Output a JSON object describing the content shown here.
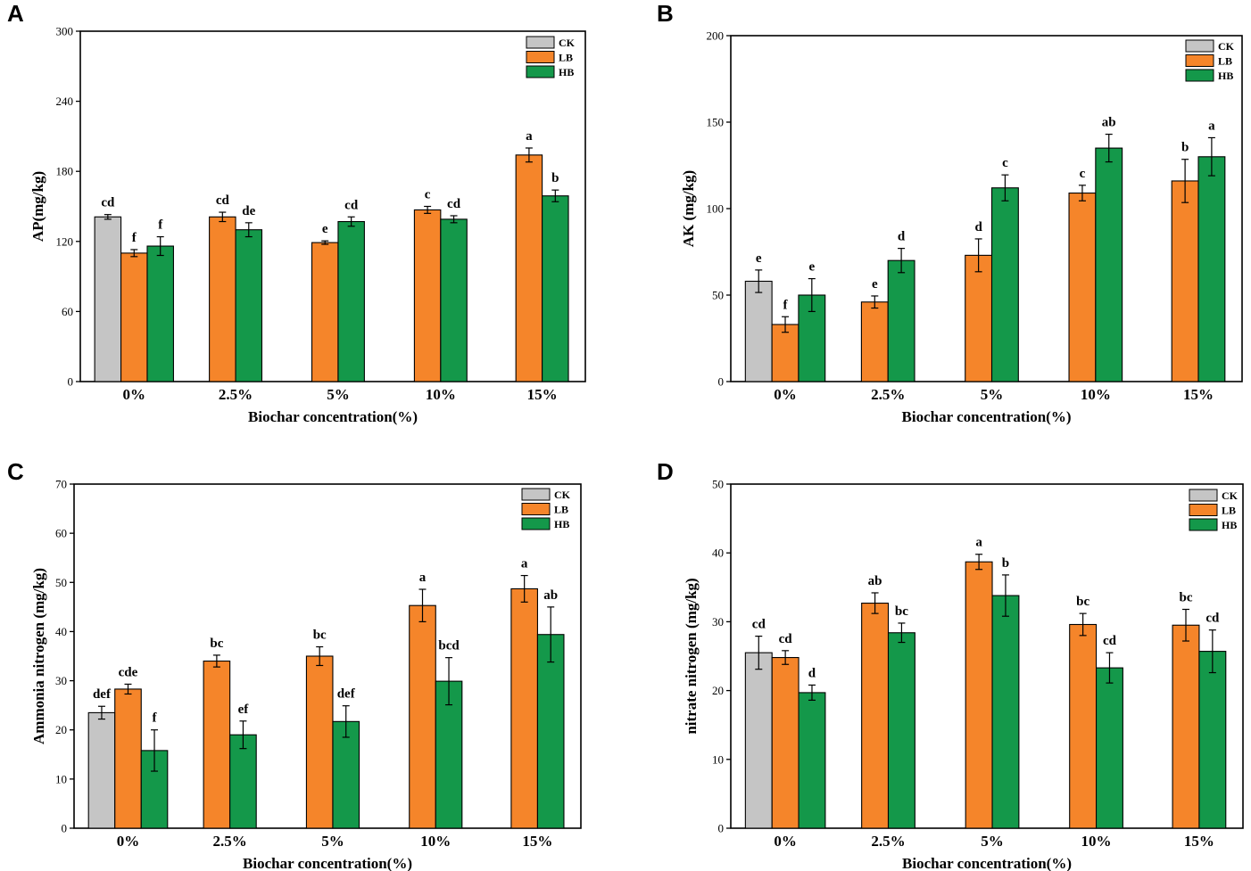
{
  "colors": {
    "CK": "#c5c5c5",
    "LB": "#f5852a",
    "HB": "#14984a"
  },
  "chart_data": [
    {
      "panel": "A",
      "type": "bar",
      "xlabel": "Biochar concentration(%)",
      "ylabel": "AP(mg/kg)",
      "ylim": [
        0,
        300
      ],
      "yticks": [
        0,
        60,
        120,
        180,
        240,
        300
      ],
      "categories": [
        "0%",
        "2.5%",
        "5%",
        "10%",
        "15%"
      ],
      "legend": [
        "CK",
        "LB",
        "HB"
      ],
      "series": [
        {
          "name": "CK",
          "values": [
            141,
            null,
            null,
            null,
            null
          ],
          "errors": [
            2,
            null,
            null,
            null,
            null
          ],
          "labels": [
            "cd",
            null,
            null,
            null,
            null
          ]
        },
        {
          "name": "LB",
          "values": [
            110,
            141,
            119,
            147,
            194
          ],
          "errors": [
            3,
            4,
            1.5,
            3,
            6
          ],
          "labels": [
            "f",
            "cd",
            "e",
            "c",
            "a"
          ]
        },
        {
          "name": "HB",
          "values": [
            116,
            130,
            137,
            139,
            159
          ],
          "errors": [
            8,
            6,
            4,
            3,
            5
          ],
          "labels": [
            "f",
            "de",
            "cd",
            "cd",
            "b"
          ]
        }
      ]
    },
    {
      "panel": "B",
      "type": "bar",
      "xlabel": "Biochar concentration(%)",
      "ylabel": "AK (mg/kg)",
      "ylim": [
        0,
        200
      ],
      "yticks": [
        0,
        50,
        100,
        150,
        200
      ],
      "categories": [
        "0%",
        "2.5%",
        "5%",
        "10%",
        "15%"
      ],
      "legend": [
        "CK",
        "LB",
        "HB"
      ],
      "series": [
        {
          "name": "CK",
          "values": [
            58,
            null,
            null,
            null,
            null
          ],
          "errors": [
            6.5,
            null,
            null,
            null,
            null
          ],
          "labels": [
            "e",
            null,
            null,
            null,
            null
          ]
        },
        {
          "name": "LB",
          "values": [
            33,
            46,
            73,
            109,
            116
          ],
          "errors": [
            4.5,
            3.5,
            9.5,
            4.5,
            12.5
          ],
          "labels": [
            "f",
            "e",
            "d",
            "c",
            "b"
          ]
        },
        {
          "name": "HB",
          "values": [
            50,
            70,
            112,
            135,
            130
          ],
          "errors": [
            9.5,
            7,
            7.5,
            8,
            11
          ],
          "labels": [
            "e",
            "d",
            "c",
            "ab",
            "a"
          ]
        }
      ]
    },
    {
      "panel": "C",
      "type": "bar",
      "xlabel": "Biochar concentration(%)",
      "ylabel": "Ammonia nitrogen (mg/kg)",
      "ylim": [
        0,
        70
      ],
      "yticks": [
        0,
        10,
        20,
        30,
        40,
        50,
        60,
        70
      ],
      "categories": [
        "0%",
        "2.5%",
        "5%",
        "10%",
        "15%"
      ],
      "legend": [
        "CK",
        "LB",
        "HB"
      ],
      "series": [
        {
          "name": "CK",
          "values": [
            23.5,
            null,
            null,
            null,
            null
          ],
          "errors": [
            1.3,
            null,
            null,
            null,
            null
          ],
          "labels": [
            "def",
            null,
            null,
            null,
            null
          ]
        },
        {
          "name": "LB",
          "values": [
            28.3,
            34,
            35,
            45.3,
            48.7
          ],
          "errors": [
            1,
            1.2,
            1.9,
            3.3,
            2.7
          ],
          "labels": [
            "cde",
            "bc",
            "bc",
            "a",
            "a"
          ]
        },
        {
          "name": "HB",
          "values": [
            15.8,
            19,
            21.7,
            29.9,
            39.4
          ],
          "errors": [
            4.2,
            2.8,
            3.2,
            4.8,
            5.6
          ],
          "labels": [
            "f",
            "ef",
            "def",
            "bcd",
            "ab"
          ]
        }
      ]
    },
    {
      "panel": "D",
      "type": "bar",
      "xlabel": "Biochar concentration(%)",
      "ylabel": "nitrate nitrogen (mg/kg)",
      "ylim": [
        0,
        50
      ],
      "yticks": [
        0,
        10,
        20,
        30,
        40,
        50
      ],
      "categories": [
        "0%",
        "2.5%",
        "5%",
        "10%",
        "15%"
      ],
      "legend": [
        "CK",
        "LB",
        "HB"
      ],
      "series": [
        {
          "name": "CK",
          "values": [
            25.5,
            null,
            null,
            null,
            null
          ],
          "errors": [
            2.4,
            null,
            null,
            null,
            null
          ],
          "labels": [
            "cd",
            null,
            null,
            null,
            null
          ]
        },
        {
          "name": "LB",
          "values": [
            24.8,
            32.7,
            38.7,
            29.6,
            29.5
          ],
          "errors": [
            1,
            1.5,
            1.1,
            1.6,
            2.3
          ],
          "labels": [
            "cd",
            "ab",
            "a",
            "bc",
            "bc"
          ]
        },
        {
          "name": "HB",
          "values": [
            19.7,
            28.4,
            33.8,
            23.3,
            25.7
          ],
          "errors": [
            1.1,
            1.4,
            3,
            2.2,
            3.1
          ],
          "labels": [
            "d",
            "bc",
            "b",
            "cd",
            "cd"
          ]
        }
      ]
    }
  ]
}
